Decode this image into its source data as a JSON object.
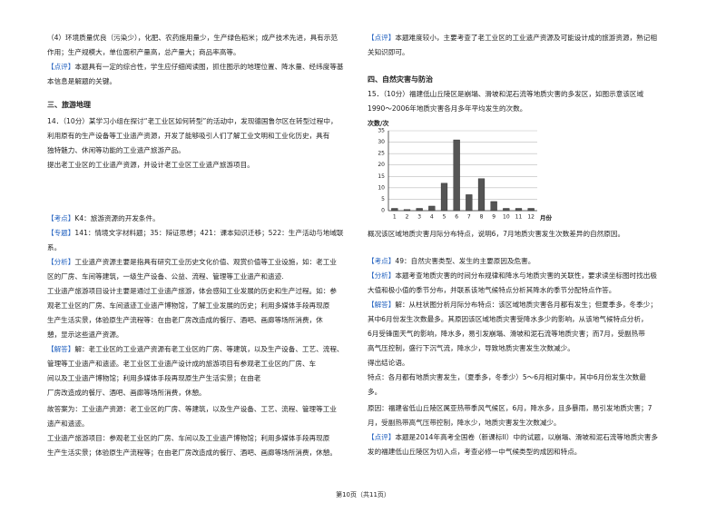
{
  "left": [
    {
      "lines": [
        "（4）环境质量优良（污染少），化肥、农药施用量少，生产绿色稻米；成产技术先进，具有示范",
        "作用；生产规模大，单位面积产量高，总产量大；商品率高等。",
        {
          "tag": "【点评】",
          "text": "本题具有一定的综合性，学生应仔细阅读图，抓住图示的地理位置、降水量、经纬度等基"
        },
        "本信息是解题的关键。"
      ]
    },
    {
      "heading": "三、旅游地理"
    },
    {
      "lines": [
        "14．（10分）某学习小组在探讨“老工业区如何转型”的活动中，发现德国鲁尔区在转型过程中，",
        "利用原有的生产设备等工业遗产资源，开发了能够吸引人们了解工业文明和工业化历史，具有",
        "独特魅力、休闲等功能的工业遗产旅游产品。",
        "提出老工业区的工业遗产资源，并设计老工业区工业遗产旅游项目。"
      ]
    },
    {
      "lines": [
        {
          "tag": "【考点】",
          "text": "K4：旅游资源的开发条件。"
        },
        {
          "tag": "【专题】",
          "text": "141：情境文字材料题；35：辩证思想；421：课本知识迁移；522：生产活动与地域联"
        },
        "系。",
        {
          "tag": "【分析】",
          "text": "工业遗产资源主要是指具有研究工业历史文化价值、观赏价值等工业设施，如：老工业"
        },
        "区的厂房、车间等建筑，一级生产设备、公益、流程、管理等工业遗产和遗迹.",
        "工业遗产旅游项目设计主要是通过工业遗产旅游，体会感知工业发展的历史和生产过程。如：参",
        "观老工业区的厂房、车间遗迹工业遗产博物馆，了解工业发展的历史；利用多媒体手段再现原",
        "生产生活实景，体验原生产流程等：在由老厂房改造成的餐厅、酒吧、画廊等场所消费，休",
        "憩，显示这些遗产资源。",
        {
          "tag": "【解答】",
          "text": "解：老工业区的工业遗产资源有老工业区的厂房、等建筑，以及生产设备、工艺、流程、"
        },
        "管理等工业遗产和遗迹。老工业区工业遗产设计成的旅游项目有参观老工业区的厂房、车",
        "间以及工业遗产博物馆；利用多媒体手段再现原生产生活实景；在由老",
        "厂房改造成的餐厅、酒吧、画廊等场所消费，休憩。"
      ]
    },
    {
      "lines": [
        "故答案为：工业遗产资源：老工业区的厂房、等建筑，以及生产设备、工艺、流程、管理等工业",
        "遗产和遗迹。",
        "工业遗产旅游项目：参观老工业区的厂房、车间以及工业遗产博物馆；利用多媒体手段再现原",
        "生产生活实景；体验原生产流程等；在由老厂房改造成的餐厅、酒吧、画廊等场所消费，休憩。"
      ]
    }
  ],
  "right": [
    {
      "lines": [
        {
          "tag": "【点评】",
          "text": "本题难度较小，主要考查了老工业区的工业遗产资源及可能设计成的旅游资源，熟记相"
        },
        "关知识即可。"
      ]
    },
    {
      "heading": "四、自然灾害与防治"
    },
    {
      "lines": [
        "15．（10分）福建低山丘陵区是崩塌、滑坡和泥石流等地质灾害的多发区，如图示意该区域",
        "1990～2006年地质灾害各月多年平均发生的次数。"
      ]
    },
    {
      "lines": [
        "概况该区域地质灾害月际分布特点，说明6，7月地质灾害发生次数差异的自然原因。"
      ]
    },
    {
      "lines": [
        {
          "tag": "【考点】",
          "text": "49：自然灾害类型、发生的主要原因及危害。"
        },
        {
          "tag": "【分析】",
          "text": "本题考查地质灾害的时间分布规律和降水与地质灾害的关联性，要求读坐标图时找出极"
        },
        "大值和极小值的季节分布，并联系该地气候特点分析其降水的季节分配特点作答。",
        {
          "tag": "【解答】",
          "text": "解：从柱状图分析月际分布特点：该区域地质灾害各月都有发生；但夏季多，冬季少；"
        },
        "其中6月份发生次数最多。其原因该区域地质灾害受降水多少的影响，从该地气候特点分析，",
        "6月受锋面天气的影响，降水多，易引发崩塌、滑坡和泥石流等地质灾害；而7月，受副热带",
        "高气压控制，盛行下沉气流，降水少，导致地质灾害发生次数减少。",
        "得出结论语。",
        "特点：各月都有地质灾害发生，（夏季多，冬季少）5～6月相对集中，其中6月份发生次数最",
        "多。"
      ]
    },
    {
      "lines": [
        "原因：福建省低山丘陵区属亚热带季风气候区，6月，降水多，且多暴雨，易引发地质灾害；7",
        "月，受副热带高气压带控制，降水少，地质灾害发生次数减少。",
        {
          "tag": "【点评】",
          "text": "本题是2014年高考全国卷（新课标II）中的试题，以崩塌、滑坡和泥石流等地质灾害多"
        },
        "发的福建低山丘陵区为切入点，考查必修一中气候类型的成因和特点。"
      ]
    }
  ],
  "chart_data": {
    "type": "bar",
    "y_label": "次数/次",
    "x_label": "月份",
    "categories": [
      "1",
      "2",
      "3",
      "4",
      "5",
      "6",
      "7",
      "8",
      "9",
      "10",
      "11",
      "12"
    ],
    "values": [
      1,
      0.5,
      1,
      2,
      12,
      31,
      7,
      14,
      4,
      1,
      1,
      1
    ],
    "ylim": [
      0,
      35
    ],
    "yticks": [
      0,
      5,
      10,
      15,
      20,
      25,
      30,
      35
    ],
    "grid": true,
    "color": "#555555"
  },
  "footer": "第10页（共11页）"
}
